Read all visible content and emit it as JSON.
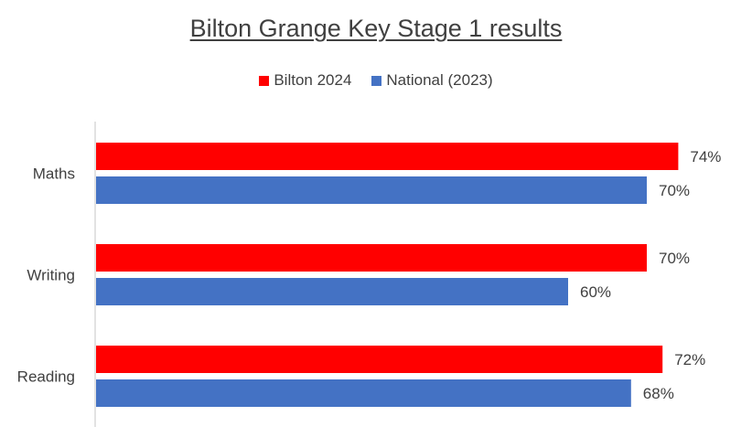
{
  "chart_data": {
    "type": "bar",
    "orientation": "horizontal",
    "title": "Bilton Grange Key Stage 1 results",
    "categories": [
      "Maths",
      "Writing",
      "Reading"
    ],
    "series": [
      {
        "name": "Bilton 2024",
        "color": "#FF0000",
        "values": [
          74,
          70,
          72
        ],
        "labels": [
          "74%",
          "70%",
          "72%"
        ]
      },
      {
        "name": "National (2023)",
        "color": "#4472C4",
        "values": [
          70,
          60,
          68
        ],
        "labels": [
          "70%",
          "60%",
          "68%"
        ]
      }
    ],
    "value_unit": "%",
    "xlim": [
      0,
      80
    ],
    "grid": false,
    "legend_position": "top"
  }
}
